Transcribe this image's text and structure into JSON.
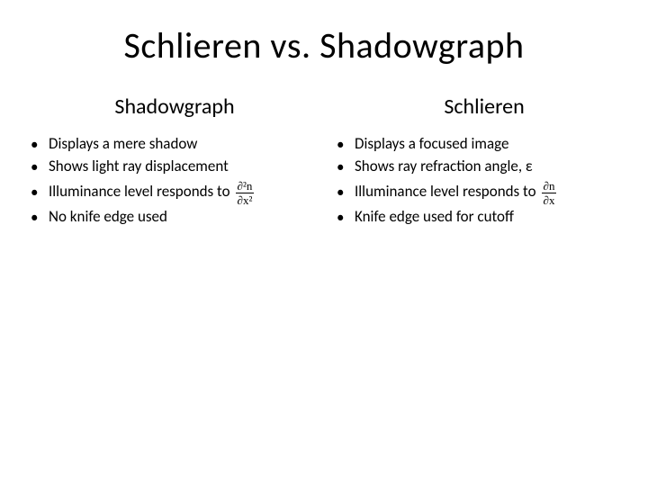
{
  "title": "Schlieren vs. Shadowgraph",
  "left": {
    "heading": "Shadowgraph",
    "items": [
      {
        "text": "Displays a mere shadow"
      },
      {
        "text": "Shows light ray displacement"
      },
      {
        "text": "Illuminance level responds to",
        "formula": {
          "num": "∂²n",
          "den": "∂x²"
        }
      },
      {
        "text": "No knife edge used"
      }
    ]
  },
  "right": {
    "heading": "Schlieren",
    "items": [
      {
        "text": "Displays a focused image"
      },
      {
        "text": "Shows ray refraction angle, ε"
      },
      {
        "text": "Illuminance level responds to",
        "formula": {
          "num": "∂n",
          "den": "∂x"
        }
      },
      {
        "text": "Knife edge used for cutoff"
      }
    ]
  },
  "style": {
    "background": "#ffffff",
    "text_color": "#000000",
    "title_fontsize": 40,
    "heading_fontsize": 24,
    "body_fontsize": 17,
    "font_family": "Calibri"
  }
}
